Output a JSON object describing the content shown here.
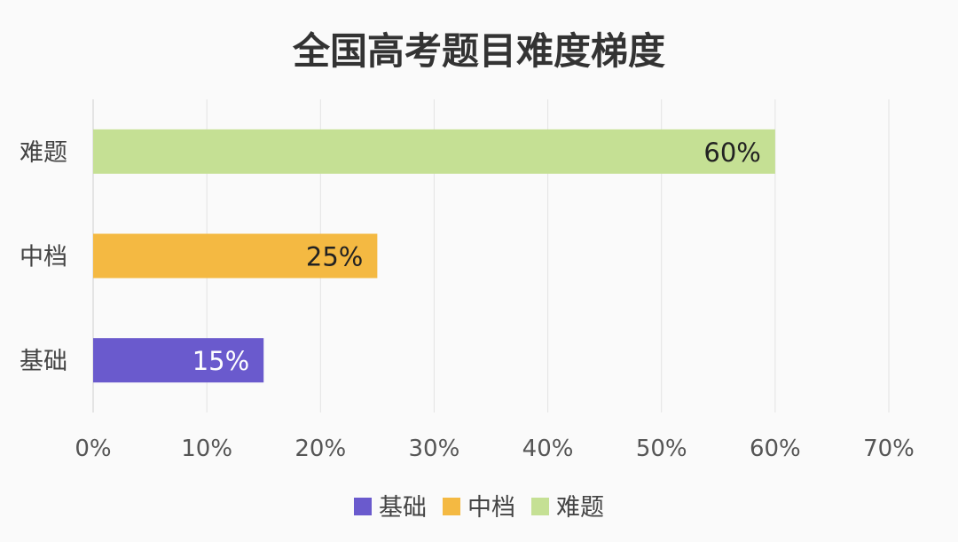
{
  "chart_data": {
    "type": "bar",
    "orientation": "horizontal",
    "title": "全国高考题目难度梯度",
    "xlabel": "",
    "ylabel": "",
    "categories": [
      "难题",
      "中档",
      "基础"
    ],
    "series": [
      {
        "name": "基础",
        "values": [
          null,
          null,
          15
        ],
        "color": "#6a5acd",
        "label_color": "#ffffff"
      },
      {
        "name": "中档",
        "values": [
          null,
          25,
          null
        ],
        "color": "#f4b942",
        "label_color": "#222222"
      },
      {
        "name": "难题",
        "values": [
          60,
          null,
          null
        ],
        "color": "#c5e094",
        "label_color": "#222222"
      }
    ],
    "data_labels": [
      "60%",
      "25%",
      "15%"
    ],
    "xlim": [
      0,
      70
    ],
    "x_ticks": [
      0,
      10,
      20,
      30,
      40,
      50,
      60,
      70
    ],
    "x_tick_labels": [
      "0%",
      "10%",
      "20%",
      "30%",
      "40%",
      "50%",
      "60%",
      "70%"
    ],
    "grid": true,
    "legend": {
      "position": "bottom",
      "entries": [
        {
          "label": "基础",
          "color": "#6a5acd"
        },
        {
          "label": "中档",
          "color": "#f4b942"
        },
        {
          "label": "难题",
          "color": "#c5e094"
        }
      ]
    }
  }
}
